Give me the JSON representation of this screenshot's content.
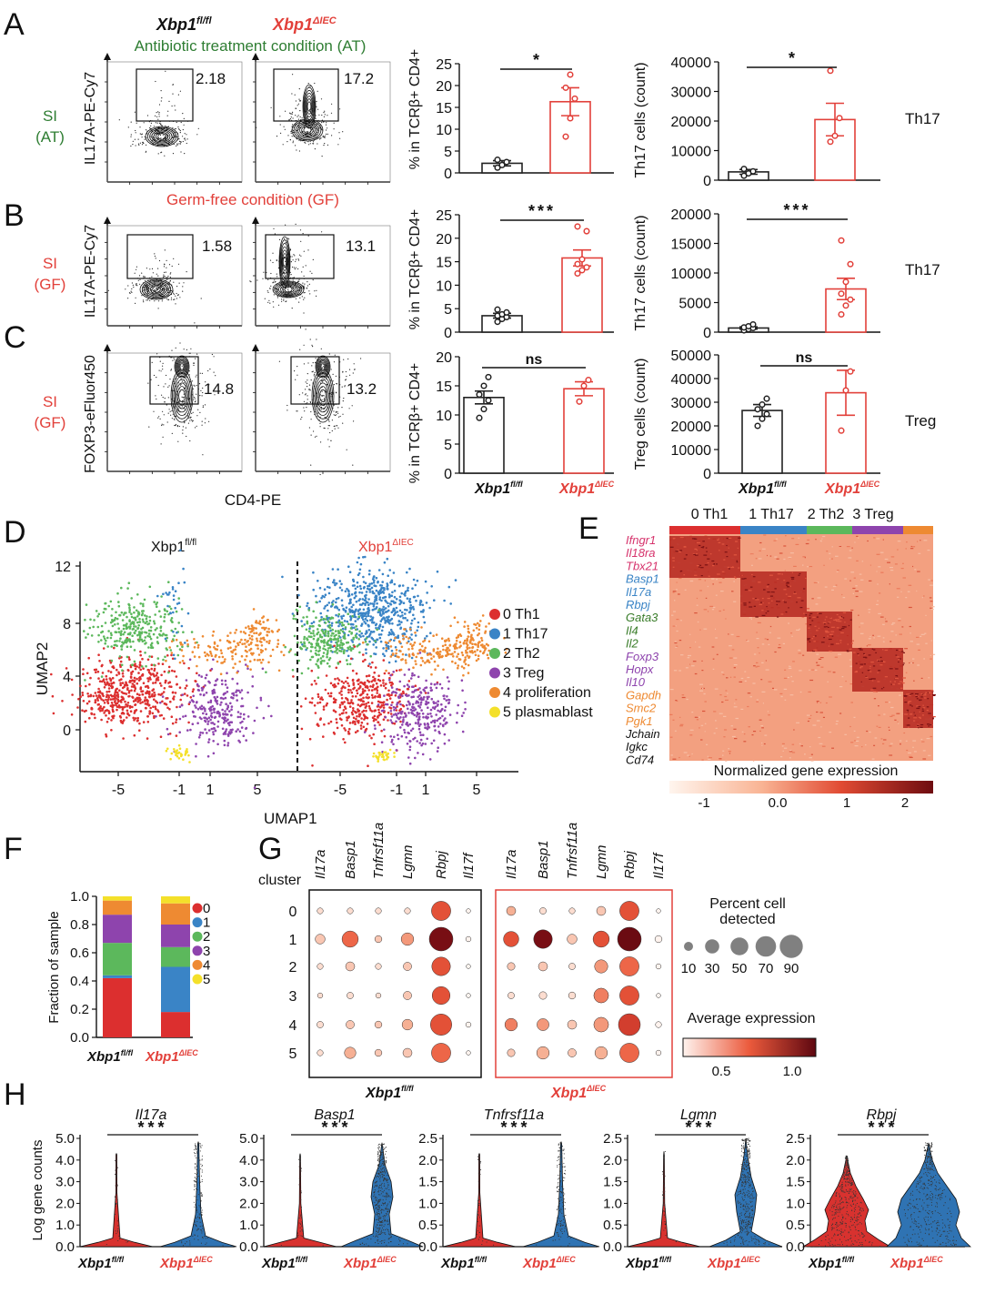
{
  "colors": {
    "ko": "#e2403a",
    "wt": "#222222",
    "green": "#2e7d32",
    "th1": "#dc2f2f",
    "th17": "#3a84c6",
    "th2": "#5cb85c",
    "treg": "#8e44ad",
    "prolif": "#ee8a32",
    "plasma": "#f4e02a",
    "violet_red": "#d8322f",
    "violet_blue": "#2f73b3"
  },
  "panel_letters": [
    "A",
    "B",
    "C",
    "D",
    "E",
    "F",
    "G",
    "H"
  ],
  "panelA": {
    "geno_wt": "Xbp1",
    "geno_wt_sup": "fl/fl",
    "geno_ko": "Xbp1",
    "geno_ko_sup": "ΔIEC",
    "condition": "Antibiotic treatment condition (AT)",
    "row_label_1": "SI",
    "row_label_2": "(AT)",
    "ylabel": "IL17A-PE-Cy7",
    "gate_wt": "2.18",
    "gate_ko": "17.2",
    "side_label": "Th17"
  },
  "panelB": {
    "condition": "Germ-free condition (GF)",
    "row_label_1": "SI",
    "row_label_2": "(GF)",
    "ylabel": "IL17A-PE-Cy7",
    "gate_wt": "1.58",
    "gate_ko": "13.1",
    "side_label": "Th17"
  },
  "panelC": {
    "row_label_1": "SI",
    "row_label_2": "(GF)",
    "ylabel": "FOXP3-eFluor450",
    "xlabel": "CD4-PE",
    "gate_wt": "14.8",
    "gate_ko": "13.2",
    "side_label": "Treg"
  },
  "bar_ylabel_top": "% in TCRβ+ CD4+",
  "bar_ylabel_mid": "% in TCRβ+ CD4+",
  "bar_ylabel_bot": "% in TCRβ+ CD4+",
  "count_ylabel_th17": "Th17 cells (count)",
  "count_ylabel_treg": "Treg cells (count)",
  "chart_data": [
    {
      "id": "A-pct",
      "type": "bar",
      "categories": [
        "Xbp1 fl/fl",
        "Xbp1 ΔIEC"
      ],
      "values": [
        2.2,
        16.3
      ],
      "sem": [
        0.6,
        3.2
      ],
      "points": [
        [
          1.2,
          1.8,
          2.5,
          3.0
        ],
        [
          8.3,
          12.5,
          17.0,
          19.5,
          22.5
        ]
      ],
      "ylim": [
        0,
        25
      ],
      "yticks": [
        0,
        5,
        10,
        15,
        20,
        25
      ],
      "significance": "*"
    },
    {
      "id": "A-count",
      "type": "bar",
      "categories": [
        "Xbp1 fl/fl",
        "Xbp1 ΔIEC"
      ],
      "values": [
        2800,
        20500
      ],
      "sem": [
        800,
        5500
      ],
      "points": [
        [
          1500,
          2300,
          3000,
          3800
        ],
        [
          13000,
          15000,
          21000,
          37000
        ]
      ],
      "ylim": [
        0,
        40000
      ],
      "yticks": [
        0,
        10000,
        20000,
        30000,
        40000
      ],
      "significance": "*"
    },
    {
      "id": "B-pct",
      "type": "bar",
      "categories": [
        "Xbp1 fl/fl",
        "Xbp1 ΔIEC"
      ],
      "values": [
        3.5,
        15.8
      ],
      "sem": [
        0.5,
        1.7
      ],
      "points": [
        [
          2.2,
          2.8,
          3.2,
          3.5,
          3.8,
          4.2,
          4.8
        ],
        [
          12.5,
          13.2,
          13.8,
          14.5,
          15.5,
          21.5,
          22.5
        ]
      ],
      "ylim": [
        0,
        25
      ],
      "yticks": [
        0,
        5,
        10,
        15,
        20,
        25
      ],
      "significance": "***"
    },
    {
      "id": "B-count",
      "type": "bar",
      "categories": [
        "Xbp1 fl/fl",
        "Xbp1 ΔIEC"
      ],
      "values": [
        700,
        7300
      ],
      "sem": [
        200,
        1800
      ],
      "points": [
        [
          300,
          500,
          700,
          800,
          1000,
          1300
        ],
        [
          3000,
          4500,
          5500,
          6500,
          8500,
          11500,
          15500
        ]
      ],
      "ylim": [
        0,
        20000
      ],
      "yticks": [
        0,
        5000,
        10000,
        15000,
        20000
      ],
      "significance": "***"
    },
    {
      "id": "C-pct",
      "type": "bar",
      "categories": [
        "Xbp1 fl/fl",
        "Xbp1 ΔIEC"
      ],
      "values": [
        13.0,
        14.5
      ],
      "sem": [
        1.1,
        1.2
      ],
      "points": [
        [
          9.5,
          11.0,
          12.5,
          13.5,
          15.0,
          16.5
        ],
        [
          12.3,
          15.0,
          16.0
        ]
      ],
      "ylim": [
        0,
        20
      ],
      "yticks": [
        0,
        5,
        10,
        15,
        20
      ],
      "significance": "ns"
    },
    {
      "id": "C-count",
      "type": "bar",
      "categories": [
        "Xbp1 fl/fl",
        "Xbp1 ΔIEC"
      ],
      "values": [
        26500,
        34000
      ],
      "sem": [
        2500,
        9500
      ],
      "points": [
        [
          20000,
          23000,
          25000,
          27000,
          29000,
          31500
        ],
        [
          18000,
          35000,
          43000
        ]
      ],
      "ylim": [
        0,
        50000
      ],
      "yticks": [
        0,
        10000,
        20000,
        30000,
        40000,
        50000
      ],
      "significance": "ns"
    },
    {
      "id": "F",
      "type": "bar",
      "stacked": true,
      "categories": [
        "Xbp1 fl/fl",
        "Xbp1 ΔIEC"
      ],
      "series": [
        {
          "name": "0",
          "values": [
            0.42,
            0.18
          ]
        },
        {
          "name": "1",
          "values": [
            0.02,
            0.32
          ]
        },
        {
          "name": "2",
          "values": [
            0.23,
            0.14
          ]
        },
        {
          "name": "3",
          "values": [
            0.2,
            0.16
          ]
        },
        {
          "name": "4",
          "values": [
            0.1,
            0.15
          ]
        },
        {
          "name": "5",
          "values": [
            0.03,
            0.05
          ]
        }
      ],
      "ylim": [
        0,
        1.0
      ],
      "yticks": [
        0.0,
        0.2,
        0.4,
        0.6,
        0.8,
        1.0
      ],
      "ylabel": "Fraction of sample"
    },
    {
      "id": "G",
      "type": "scatter",
      "genes": [
        "Il17a",
        "Basp1",
        "Tnfrsf11a",
        "Lgmn",
        "Rbpj",
        "Il17f"
      ],
      "clusters": [
        "0",
        "1",
        "2",
        "3",
        "4",
        "5"
      ],
      "wt": {
        "percent": [
          [
            3,
            3,
            3,
            3,
            60,
            1
          ],
          [
            12,
            40,
            5,
            22,
            95,
            2
          ],
          [
            3,
            10,
            3,
            8,
            55,
            1
          ],
          [
            2,
            4,
            2,
            8,
            50,
            1
          ],
          [
            4,
            8,
            5,
            15,
            75,
            2
          ],
          [
            3,
            18,
            5,
            10,
            60,
            1
          ]
        ],
        "avg": [
          [
            0.2,
            0.2,
            0.2,
            0.2,
            0.8,
            0.1
          ],
          [
            0.3,
            0.7,
            0.3,
            0.5,
            1.3,
            0.1
          ],
          [
            0.2,
            0.3,
            0.2,
            0.3,
            0.8,
            0.1
          ],
          [
            0.2,
            0.2,
            0.2,
            0.3,
            0.8,
            0.1
          ],
          [
            0.2,
            0.3,
            0.3,
            0.4,
            0.8,
            0.1
          ],
          [
            0.2,
            0.4,
            0.3,
            0.3,
            0.7,
            0.1
          ]
        ]
      },
      "ko": {
        "percent": [
          [
            10,
            4,
            3,
            10,
            60,
            1
          ],
          [
            35,
            55,
            12,
            40,
            95,
            5
          ],
          [
            6,
            10,
            4,
            25,
            60,
            2
          ],
          [
            4,
            6,
            5,
            32,
            60,
            1
          ],
          [
            22,
            20,
            10,
            32,
            80,
            3
          ],
          [
            6,
            22,
            8,
            22,
            60,
            2
          ]
        ],
        "avg": [
          [
            0.4,
            0.2,
            0.2,
            0.3,
            0.8,
            0.1
          ],
          [
            0.8,
            1.3,
            0.3,
            0.8,
            1.35,
            0.1
          ],
          [
            0.3,
            0.3,
            0.2,
            0.5,
            0.7,
            0.1
          ],
          [
            0.2,
            0.2,
            0.2,
            0.6,
            0.8,
            0.1
          ],
          [
            0.6,
            0.5,
            0.3,
            0.5,
            0.9,
            0.1
          ],
          [
            0.3,
            0.4,
            0.3,
            0.4,
            0.7,
            0.1
          ]
        ]
      },
      "size_legend": [
        10,
        30,
        50,
        70,
        90
      ],
      "color_scale": [
        0.5,
        1.0
      ]
    },
    {
      "id": "H",
      "type": "violin",
      "genes": [
        "Il17a",
        "Basp1",
        "Tnfrsf11a",
        "Lgmn",
        "Rbpj"
      ],
      "ylims": [
        [
          0,
          5
        ],
        [
          0,
          5
        ],
        [
          0,
          2.5
        ],
        [
          0,
          2.5
        ],
        [
          0,
          2.5
        ]
      ],
      "yticks": [
        [
          "0.0",
          "1.0",
          "2.0",
          "3.0",
          "4.0",
          "5.0"
        ],
        [
          "0.0",
          "1.0",
          "2.0",
          "3.0",
          "4.0",
          "5.0"
        ],
        [
          "0.0",
          "0.5",
          "1.0",
          "1.5",
          "2.0",
          "2.5"
        ],
        [
          "0.0",
          "0.5",
          "1.0",
          "1.5",
          "2.0",
          "2.5"
        ],
        [
          "0.0",
          "0.5",
          "1.0",
          "1.5",
          "2.0",
          "2.5"
        ]
      ],
      "significance": "***",
      "ylabel": "Log gene counts"
    }
  ],
  "panelD": {
    "title_wt": "Xbp1",
    "title_wt_sup": "fl/fl",
    "title_ko": "Xbp1",
    "title_ko_sup": "ΔIEC",
    "ylabel": "UMAP2",
    "xlabel": "UMAP1",
    "yticks": [
      "12",
      "8",
      "4",
      "0"
    ],
    "xticks": [
      "-5",
      "-1",
      "1",
      "5"
    ],
    "legend": [
      "0 Th1",
      "1 Th17",
      "2 Th2",
      "3 Treg",
      "4 proliferation",
      "5 plasmablast"
    ]
  },
  "panelE": {
    "header": [
      "0 Th1",
      "1 Th17",
      "2 Th2",
      "3 Treg"
    ],
    "genes": [
      [
        "Ifngr1",
        "th1"
      ],
      [
        "Il18ra",
        "th1"
      ],
      [
        "Tbx21",
        "th1"
      ],
      [
        "Basp1",
        "th17"
      ],
      [
        "Il17a",
        "th17"
      ],
      [
        "Rbpj",
        "th17"
      ],
      [
        "Gata3",
        "th2"
      ],
      [
        "Il4",
        "th2"
      ],
      [
        "Il2",
        "th2"
      ],
      [
        "Foxp3",
        "treg"
      ],
      [
        "Hopx",
        "treg"
      ],
      [
        "Il10",
        "treg"
      ],
      [
        "Gapdh",
        "prolif"
      ],
      [
        "Smc2",
        "prolif"
      ],
      [
        "Pgk1",
        "prolif"
      ],
      [
        "Jchain",
        "wt"
      ],
      [
        "Igkc",
        "wt"
      ],
      [
        "Cd74",
        "wt"
      ]
    ],
    "colorbar_title": "Normalized gene expression",
    "colorbar_ticks": [
      "-1",
      "0.0",
      "1",
      "2"
    ]
  },
  "panelF": {
    "legend": [
      "0",
      "1",
      "2",
      "3",
      "4",
      "5"
    ]
  },
  "panelG": {
    "cluster_label": "cluster",
    "percent_title_1": "Percent cell",
    "percent_title_2": "detected",
    "avg_title": "Average expression",
    "avg_ticks": [
      "0.5",
      "1.0"
    ]
  },
  "xcat_wt": "Xbp1",
  "xcat_wt_sup": "fl/fl",
  "xcat_ko": "Xbp1",
  "xcat_ko_sup": "ΔIEC"
}
